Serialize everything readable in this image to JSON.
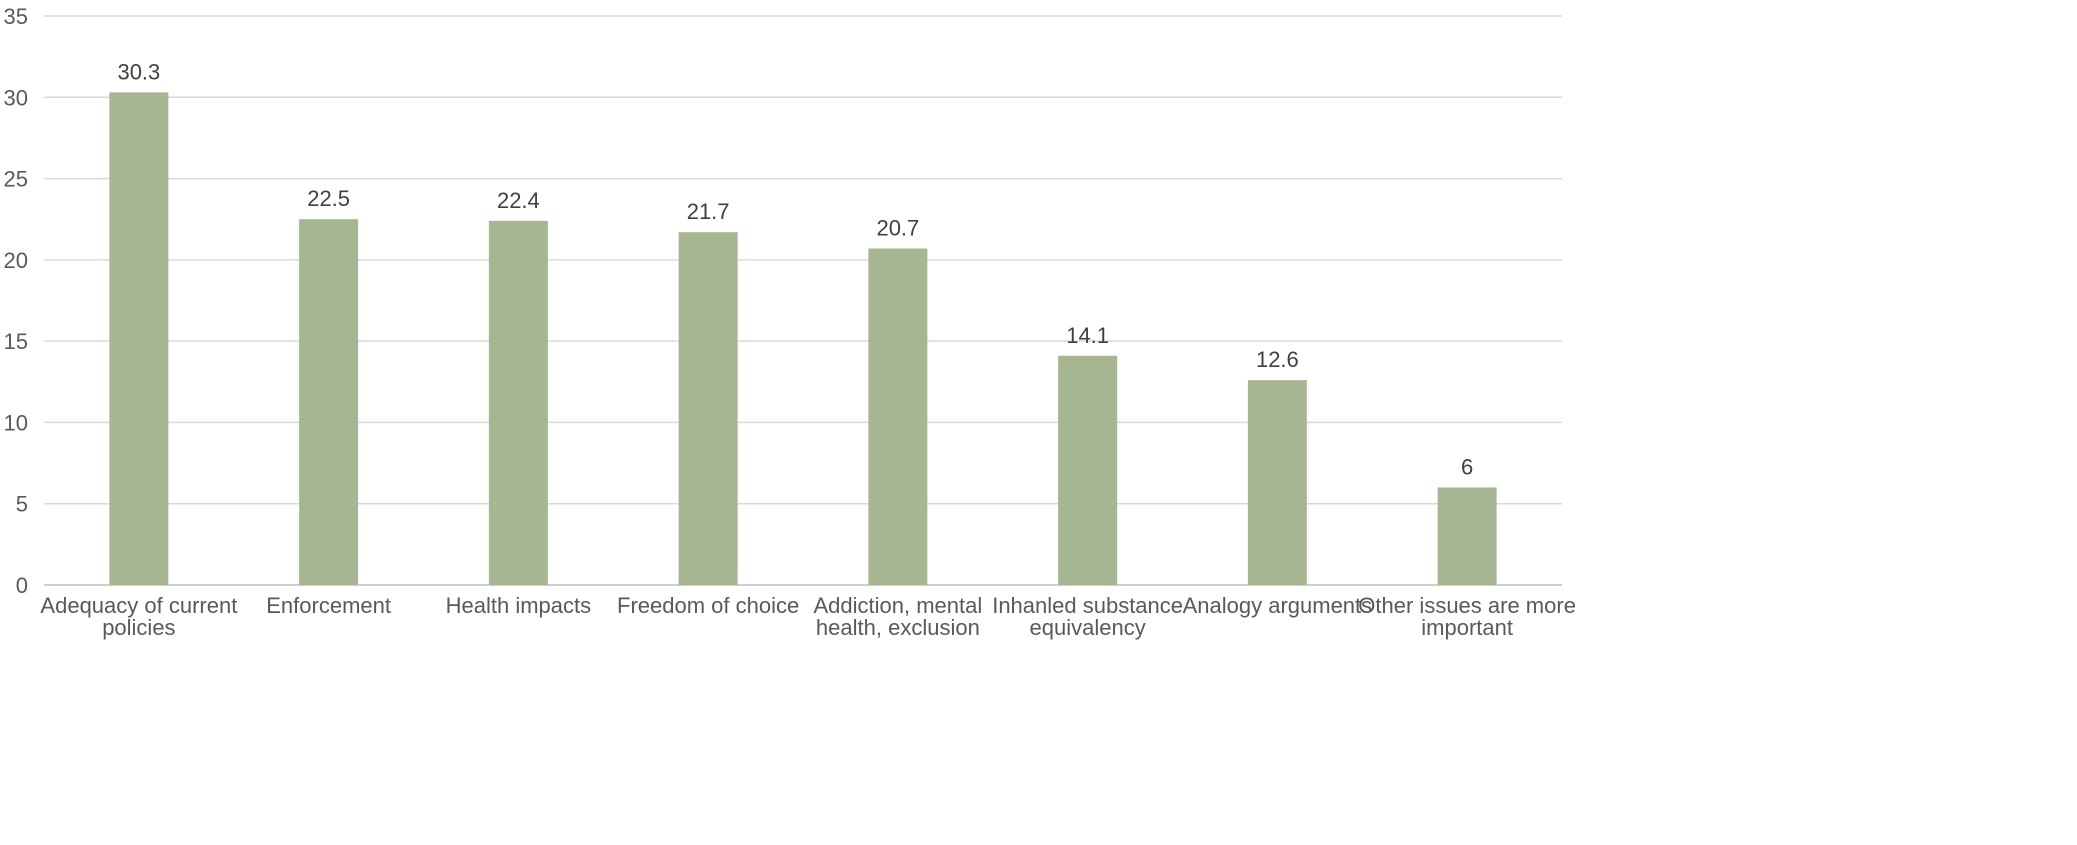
{
  "chart_data": {
    "type": "bar",
    "title": "",
    "xlabel": "",
    "ylabel": "",
    "ylim": [
      0,
      35
    ],
    "yticks": [
      0,
      5,
      10,
      15,
      20,
      25,
      30,
      35
    ],
    "grid": true,
    "legend": "none",
    "bar_color": "#a6b592",
    "categories": [
      [
        "Adequacy of current",
        "policies"
      ],
      [
        "Enforcement"
      ],
      [
        "Health impacts"
      ],
      [
        "Freedom of choice"
      ],
      [
        "Addiction, mental",
        "health, exclusion"
      ],
      [
        "Inhanled substance",
        "equivalency"
      ],
      [
        "Analogy arguments"
      ],
      [
        "Other issues are more",
        "important"
      ]
    ],
    "values": [
      30.3,
      22.5,
      22.4,
      21.7,
      20.7,
      14.1,
      12.6,
      6
    ],
    "value_labels": [
      "30.3",
      "22.5",
      "22.4",
      "21.7",
      "20.7",
      "14.1",
      "12.6",
      "6"
    ]
  }
}
